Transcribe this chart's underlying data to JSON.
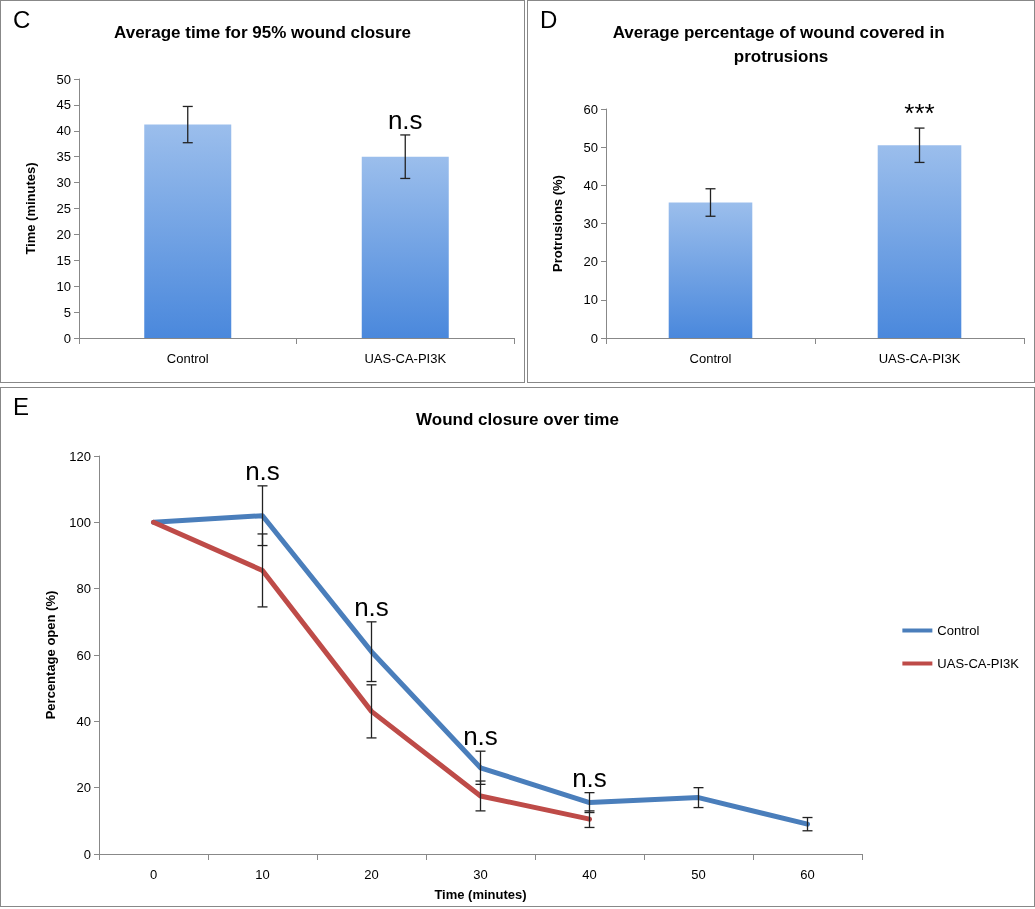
{
  "chart_data": [
    {
      "type": "bar",
      "title": "Average time for 95% wound closure",
      "ylabel": "Time (minutes)",
      "categories": [
        "Control",
        "UAS-CA-PI3K"
      ],
      "values": [
        41.2,
        35
      ],
      "errors": [
        3.5,
        4.2
      ],
      "color": "#4a88dc",
      "ylim": [
        0,
        50
      ],
      "yticks": [
        0,
        5,
        10,
        15,
        20,
        25,
        30,
        35,
        40,
        45,
        50
      ],
      "grid": false,
      "legend": false,
      "annotations": [
        "C",
        "n.s"
      ]
    },
    {
      "type": "bar",
      "title": "Average percentage of wound covered in protrusions",
      "ylabel": "Protrusions (%)",
      "categories": [
        "Control",
        "UAS-CA-PI3K"
      ],
      "values": [
        35.5,
        50.5
      ],
      "errors": [
        3.6,
        4.5
      ],
      "color": "#4a88dc",
      "ylim": [
        0,
        60
      ],
      "yticks": [
        0,
        10,
        20,
        30,
        40,
        50,
        60
      ],
      "grid": false,
      "legend": false,
      "annotations": [
        "D",
        "***"
      ]
    },
    {
      "type": "line",
      "title": "Wound closure over time",
      "xlabel": "Time (minutes)",
      "ylabel": "Percentage open (%)",
      "categories": [
        "0",
        "10",
        "20",
        "30",
        "40",
        "50",
        "60"
      ],
      "ylim": [
        0,
        120
      ],
      "yticks": [
        0,
        20,
        40,
        60,
        80,
        100,
        120
      ],
      "grid": false,
      "legend": "right",
      "marker": "none",
      "line_style": "solid",
      "series": [
        {
          "name": "Control",
          "color": "#4a7ebb",
          "values": [
            100,
            102,
            61,
            26,
            15.5,
            17,
            9
          ],
          "errors": [
            null,
            9,
            9,
            5,
            3,
            3,
            2
          ]
        },
        {
          "name": "UAS-CA-PI3K",
          "color": "#be4b48",
          "values": [
            100,
            85.5,
            43,
            17.5,
            10.5,
            null,
            null
          ],
          "errors": [
            null,
            11,
            8,
            4.5,
            2.5,
            null,
            null
          ]
        }
      ],
      "annotations": [
        "E",
        "n.s",
        "n.s",
        "n.s",
        "n.s"
      ]
    }
  ]
}
